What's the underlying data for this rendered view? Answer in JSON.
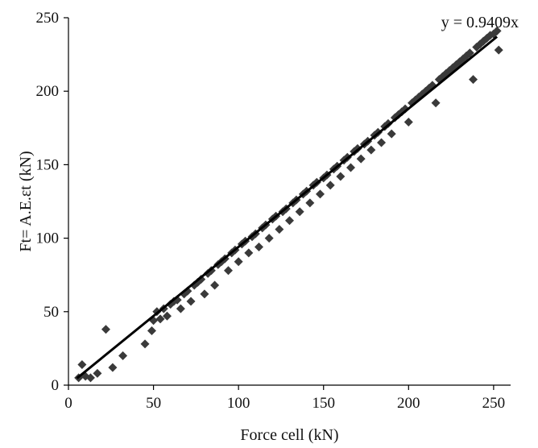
{
  "chart_data": {
    "type": "scatter",
    "title": "",
    "xlabel": "Force cell (kN)",
    "ylabel": "Ft= A.E.εt (kN)",
    "xlim": [
      0,
      260
    ],
    "ylim": [
      0,
      250
    ],
    "x_ticks": [
      0,
      50,
      100,
      150,
      200,
      250
    ],
    "y_ticks": [
      0,
      50,
      100,
      150,
      200,
      250
    ],
    "grid": false,
    "legend": "none",
    "marker": "diamond",
    "marker_color": "#3a3a3a",
    "trendline": {
      "slope": 0.9409,
      "intercept": 0,
      "x_range": [
        5,
        252
      ],
      "label": "y = 0.9409x",
      "color": "#000000"
    },
    "series": [
      {
        "points": [
          [
            6,
            5
          ],
          [
            8,
            14
          ],
          [
            10,
            6
          ],
          [
            13,
            5
          ],
          [
            17,
            8
          ],
          [
            22,
            38
          ],
          [
            26,
            12
          ],
          [
            32,
            20
          ],
          [
            45,
            28
          ],
          [
            49,
            37
          ],
          [
            50,
            44
          ],
          [
            52,
            50
          ],
          [
            54,
            45
          ],
          [
            56,
            52
          ],
          [
            58,
            47
          ],
          [
            60,
            55
          ],
          [
            62,
            57
          ],
          [
            64,
            58
          ],
          [
            66,
            52
          ],
          [
            68,
            62
          ],
          [
            70,
            64
          ],
          [
            72,
            57
          ],
          [
            74,
            68
          ],
          [
            76,
            70
          ],
          [
            78,
            72
          ],
          [
            80,
            62
          ],
          [
            82,
            76
          ],
          [
            84,
            78
          ],
          [
            86,
            68
          ],
          [
            88,
            82
          ],
          [
            90,
            84
          ],
          [
            92,
            86
          ],
          [
            94,
            78
          ],
          [
            96,
            90
          ],
          [
            98,
            92
          ],
          [
            100,
            84
          ],
          [
            102,
            96
          ],
          [
            104,
            98
          ],
          [
            106,
            90
          ],
          [
            108,
            101
          ],
          [
            110,
            103
          ],
          [
            112,
            94
          ],
          [
            114,
            107
          ],
          [
            116,
            109
          ],
          [
            118,
            100
          ],
          [
            120,
            113
          ],
          [
            122,
            115
          ],
          [
            124,
            106
          ],
          [
            126,
            118
          ],
          [
            128,
            120
          ],
          [
            130,
            112
          ],
          [
            132,
            124
          ],
          [
            134,
            126
          ],
          [
            136,
            118
          ],
          [
            138,
            130
          ],
          [
            140,
            132
          ],
          [
            142,
            124
          ],
          [
            144,
            136
          ],
          [
            146,
            138
          ],
          [
            148,
            130
          ],
          [
            150,
            141
          ],
          [
            152,
            143
          ],
          [
            154,
            136
          ],
          [
            156,
            147
          ],
          [
            158,
            149
          ],
          [
            160,
            142
          ],
          [
            162,
            153
          ],
          [
            164,
            155
          ],
          [
            166,
            148
          ],
          [
            168,
            159
          ],
          [
            170,
            161
          ],
          [
            172,
            154
          ],
          [
            174,
            164
          ],
          [
            176,
            166
          ],
          [
            178,
            160
          ],
          [
            180,
            170
          ],
          [
            182,
            172
          ],
          [
            184,
            165
          ],
          [
            186,
            176
          ],
          [
            188,
            178
          ],
          [
            190,
            171
          ],
          [
            192,
            182
          ],
          [
            194,
            184
          ],
          [
            196,
            186
          ],
          [
            198,
            188
          ],
          [
            200,
            179
          ],
          [
            202,
            192
          ],
          [
            204,
            194
          ],
          [
            206,
            196
          ],
          [
            208,
            198
          ],
          [
            210,
            200
          ],
          [
            212,
            202
          ],
          [
            214,
            204
          ],
          [
            216,
            192
          ],
          [
            218,
            208
          ],
          [
            220,
            210
          ],
          [
            222,
            212
          ],
          [
            224,
            214
          ],
          [
            226,
            216
          ],
          [
            228,
            218
          ],
          [
            230,
            220
          ],
          [
            232,
            222
          ],
          [
            234,
            224
          ],
          [
            236,
            226
          ],
          [
            238,
            208
          ],
          [
            240,
            230
          ],
          [
            242,
            232
          ],
          [
            244,
            234
          ],
          [
            246,
            236
          ],
          [
            248,
            238
          ],
          [
            250,
            239
          ],
          [
            252,
            241
          ],
          [
            253,
            228
          ]
        ]
      }
    ]
  }
}
